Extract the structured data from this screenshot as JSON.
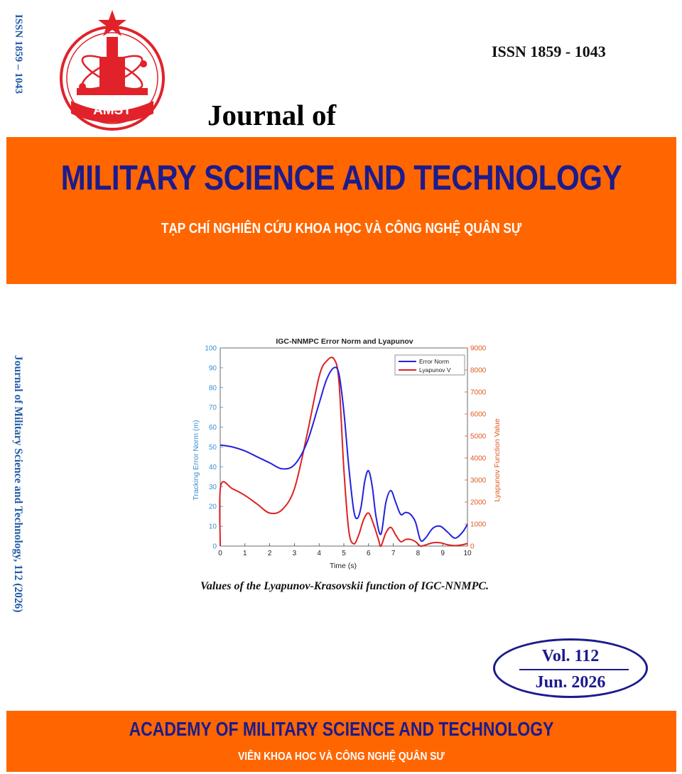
{
  "spine": {
    "issn": "ISSN  1859 – 1043",
    "journal_ref": "Journal of Military Science and Technology, 112 (2026)"
  },
  "logo": {
    "text": "AMST",
    "icon": "amst-emblem-icon",
    "colors": {
      "red": "#e1222a",
      "star": "#e1222a"
    }
  },
  "header": {
    "issn": "ISSN 1859 - 1043",
    "journal_of": "Journal of"
  },
  "band": {
    "title": "MILITARY SCIENCE AND TECHNOLOGY",
    "subtitle": "TẠP CHÍ NGHIÊN CỨU KHOA HỌC VÀ CÔNG NGHỆ QUÂN SỰ",
    "color": "#ff6600",
    "title_color": "#1c1b8c"
  },
  "figure": {
    "caption": "Values of the Lyapunov-Krasovskii function of IGC-NNMPC."
  },
  "chart_data": {
    "type": "line",
    "title": "IGC-NNMPC Error Norm and Lyapunov",
    "xlabel": "Time (s)",
    "ylabel_left": "Tracking Error Norm (m)",
    "ylabel_right": "Lyapunov Function Value",
    "xlim": [
      0,
      10
    ],
    "ylim_left": [
      0,
      100
    ],
    "ylim_right": [
      0,
      9000
    ],
    "x_ticks": [
      "0",
      "1",
      "2",
      "3",
      "4",
      "5",
      "6",
      "7",
      "8",
      "9",
      "10"
    ],
    "y_ticks_left": [
      "0",
      "10",
      "20",
      "30",
      "40",
      "50",
      "60",
      "70",
      "80",
      "90",
      "100"
    ],
    "y_ticks_right": [
      "0",
      "1000",
      "2000",
      "3000",
      "4000",
      "5000",
      "6000",
      "7000",
      "8000",
      "9000"
    ],
    "legend_position": "top-right",
    "grid": false,
    "series": [
      {
        "name": "Error Norm",
        "axis": "left",
        "color": "#2222dd",
        "x": [
          0,
          0.5,
          1.0,
          1.5,
          2.0,
          2.5,
          3.0,
          3.5,
          4.0,
          4.3,
          4.6,
          4.8,
          5.0,
          5.2,
          5.4,
          5.55,
          5.7,
          5.85,
          6.0,
          6.15,
          6.3,
          6.5,
          6.7,
          6.9,
          7.1,
          7.3,
          7.5,
          7.7,
          7.9,
          8.1,
          8.3,
          8.6,
          8.9,
          9.2,
          9.5,
          9.8,
          10.0
        ],
        "y": [
          51,
          50,
          48,
          45,
          42,
          39,
          41,
          52,
          72,
          84,
          90,
          87,
          68,
          40,
          18,
          14,
          20,
          33,
          38,
          30,
          15,
          6,
          22,
          28,
          22,
          16,
          17,
          16,
          12,
          3,
          4,
          9,
          10,
          7,
          4,
          7,
          11
        ]
      },
      {
        "name": "Lyapunov V",
        "axis": "right",
        "color": "#dd2222",
        "x": [
          0,
          0.02,
          0.5,
          1.0,
          1.5,
          2.0,
          2.5,
          3.0,
          3.5,
          4.0,
          4.3,
          4.6,
          4.8,
          5.0,
          5.2,
          5.4,
          5.6,
          5.8,
          6.0,
          6.2,
          6.4,
          6.5,
          6.7,
          6.9,
          7.1,
          7.3,
          7.5,
          7.7,
          7.9,
          8.1,
          8.3,
          8.6,
          8.9,
          9.2,
          9.5,
          9.8,
          10.0
        ],
        "y": [
          0,
          2750,
          2600,
          2300,
          1900,
          1500,
          1650,
          2600,
          5000,
          7700,
          8400,
          8500,
          7500,
          3500,
          700,
          100,
          500,
          1200,
          1500,
          1000,
          300,
          0,
          600,
          850,
          500,
          200,
          300,
          300,
          200,
          0,
          50,
          150,
          150,
          60,
          20,
          60,
          120
        ]
      }
    ]
  },
  "volume": {
    "vol": "Vol. 112",
    "date": "Jun. 2026"
  },
  "footer": {
    "title": "ACADEMY OF MILITARY SCIENCE AND TECHNOLOGY",
    "subtitle": "VIÊN KHOA HOC VÀ CÔNG NGHỆ QUÂN SƯ"
  }
}
